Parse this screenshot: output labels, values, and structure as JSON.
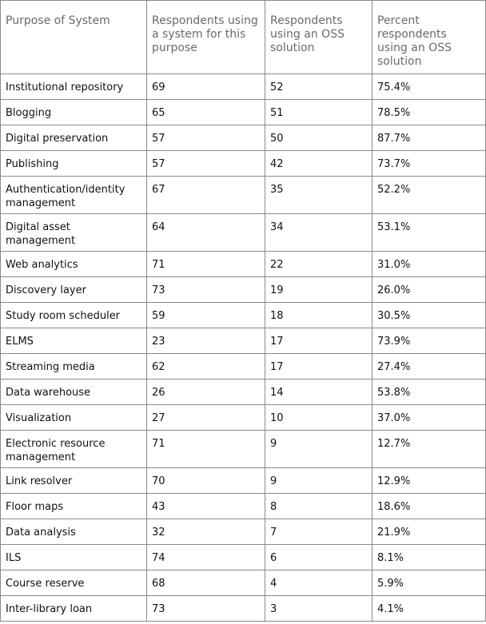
{
  "table": {
    "header": [
      "Purpose of System",
      "Respondents using a system for this purpose",
      "Respondents using an OSS solution",
      "Percent respondents using an OSS solution"
    ],
    "rows": [
      [
        "Institutional repository",
        "69",
        "52",
        "75.4%"
      ],
      [
        "Blogging",
        "65",
        "51",
        "78.5%"
      ],
      [
        "Digital preservation",
        "57",
        "50",
        "87.7%"
      ],
      [
        "Publishing",
        "57",
        "42",
        "73.7%"
      ],
      [
        "Authentication/identity management",
        "67",
        "35",
        "52.2%"
      ],
      [
        "Digital asset management",
        "64",
        "34",
        "53.1%"
      ],
      [
        "Web analytics",
        "71",
        "22",
        "31.0%"
      ],
      [
        "Discovery layer",
        "73",
        "19",
        "26.0%"
      ],
      [
        "Study room scheduler",
        "59",
        "18",
        "30.5%"
      ],
      [
        "ELMS",
        "23",
        "17",
        "73.9%"
      ],
      [
        "Streaming media",
        "62",
        "17",
        "27.4%"
      ],
      [
        "Data warehouse",
        "26",
        "14",
        "53.8%"
      ],
      [
        "Visualization",
        "27",
        "10",
        "37.0%"
      ],
      [
        "Electronic resource management",
        "71",
        "9",
        "12.7%"
      ],
      [
        "Link resolver",
        "70",
        "9",
        "12.9%"
      ],
      [
        "Floor maps",
        "43",
        "8",
        "18.6%"
      ],
      [
        "Data analysis",
        "32",
        "7",
        "21.9%"
      ],
      [
        "ILS",
        "74",
        "6",
        "8.1%"
      ],
      [
        "Course reserve",
        "68",
        "4",
        "5.9%"
      ],
      [
        "Inter-library loan",
        "73",
        "3",
        "4.1%"
      ]
    ]
  }
}
